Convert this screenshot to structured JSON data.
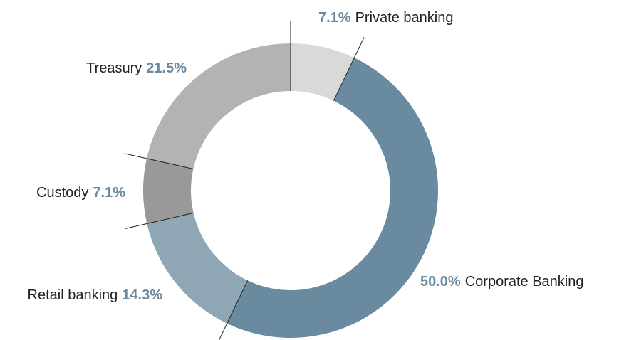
{
  "chart_data": {
    "type": "donut",
    "categories": [
      "Private banking",
      "Corporate Banking",
      "Retail banking",
      "Custody",
      "Treasury"
    ],
    "values": [
      7.1,
      50.0,
      14.3,
      7.1,
      21.5
    ],
    "value_labels": [
      "7.1%",
      "50.0%",
      "14.3%",
      "7.1%",
      "21.5%"
    ],
    "colors": [
      "#d9d9d9",
      "#6a8a9f",
      "#8fa6b5",
      "#999999",
      "#b3b3b3"
    ]
  }
}
